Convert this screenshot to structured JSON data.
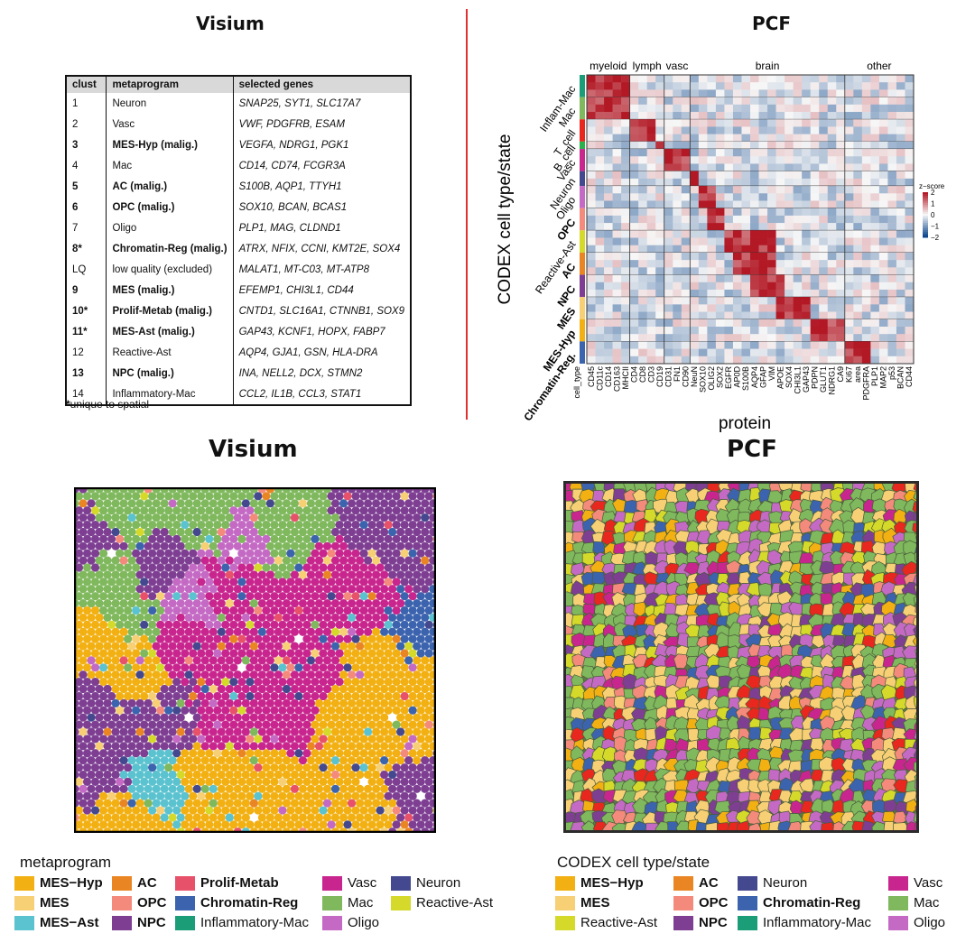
{
  "top_left": {
    "title": "Visium",
    "table": {
      "headers": [
        "clust",
        "metaprogram",
        "selected genes"
      ],
      "rows": [
        {
          "clust": "1",
          "metaprogram": "Neuron",
          "genes": "SNAP25, SYT1, SLC17A7",
          "bold": false
        },
        {
          "clust": "2",
          "metaprogram": "Vasc",
          "genes": "VWF, PDGFRB, ESAM",
          "bold": false
        },
        {
          "clust": "3",
          "metaprogram": "MES-Hyp (malig.)",
          "genes": "VEGFA, NDRG1, PGK1",
          "bold": true
        },
        {
          "clust": "4",
          "metaprogram": "Mac",
          "genes": "CD14, CD74, FCGR3A",
          "bold": false
        },
        {
          "clust": "5",
          "metaprogram": "AC (malig.)",
          "genes": "S100B, AQP1, TTYH1",
          "bold": true
        },
        {
          "clust": "6",
          "metaprogram": "OPC (malig.)",
          "genes": "SOX10, BCAN, BCAS1",
          "bold": true
        },
        {
          "clust": "7",
          "metaprogram": "Oligo",
          "genes": "PLP1, MAG, CLDND1",
          "bold": false
        },
        {
          "clust": "8*",
          "metaprogram": "Chromatin-Reg (malig.)",
          "genes": "ATRX, NFIX, CCNI, KMT2E, SOX4",
          "bold": true
        },
        {
          "clust": "LQ",
          "metaprogram": "low quality (excluded)",
          "genes": "MALAT1, MT-C03, MT-ATP8",
          "bold": false
        },
        {
          "clust": "9",
          "metaprogram": "MES (malig.)",
          "genes": "EFEMP1, CHI3L1, CD44",
          "bold": true
        },
        {
          "clust": "10*",
          "metaprogram": "Prolif-Metab (malig.)",
          "genes": "CNTD1, SLC16A1, CTNNB1, SOX9",
          "bold": true
        },
        {
          "clust": "11*",
          "metaprogram": "MES-Ast (malig.)",
          "genes": "GAP43, KCNF1, HOPX, FABP7",
          "bold": true
        },
        {
          "clust": "12",
          "metaprogram": "Reactive-Ast",
          "genes": "AQP4, GJA1, GSN, HLA-DRA",
          "bold": false
        },
        {
          "clust": "13",
          "metaprogram": "NPC (malig.)",
          "genes": "INA, NELL2, DCX, STMN2",
          "bold": true
        },
        {
          "clust": "14",
          "metaprogram": "Inflammatory-Mac",
          "genes": "CCL2, IL1B, CCL3, STAT1",
          "bold": false
        }
      ],
      "footnote_mark": "*",
      "footnote": "unique to spatial"
    }
  },
  "top_right": {
    "title": "PCF",
    "chart_data": {
      "type": "heatmap",
      "ylabel": "CODEX cell type/state",
      "xlabel": "protein",
      "column_groups": [
        "myeloid",
        "lymph",
        "vasc",
        "brain",
        "other"
      ],
      "proteins": [
        "CD45",
        "CD11c",
        "CD14",
        "CD163",
        "MHCII",
        "CD4",
        "CD8",
        "CD3",
        "CD19",
        "CD31",
        "FN1",
        "CD90",
        "NeuN",
        "SOX10",
        "OLIG2",
        "SOX2",
        "EGFR",
        "AP0D",
        "S100B",
        "AQP4",
        "GFAP",
        "VIM",
        "APOE",
        "SOX4",
        "CHI3L1",
        "GAP43",
        "PDPN",
        "GLUT1",
        "NDRG1",
        "CA9",
        "Ki67",
        "area",
        "PDGFRA",
        "PLP1",
        "MAP2",
        "p53",
        "BCAN",
        "CD44"
      ],
      "first_column_label": "cell_type",
      "row_labels": [
        "Inflam-Mac",
        "Mac",
        "T_cell",
        "B_cell",
        "Vasc",
        "Neuron",
        "Oligo",
        "OPC",
        "Reactive-Ast",
        "AC",
        "NPC",
        "MES",
        "MES-Hyp",
        "Chromatin-Reg."
      ],
      "bold_rows": [
        "OPC",
        "AC",
        "NPC",
        "MES",
        "MES-Hyp",
        "Chromatin-Reg."
      ],
      "colorbar": {
        "title": "z−score",
        "ticks": [
          "2",
          "1",
          "0",
          "−1",
          "−2"
        ],
        "min": -2,
        "max": 2
      }
    }
  },
  "bottom_left": {
    "title": "Visium"
  },
  "bottom_right": {
    "title": "PCF"
  },
  "legend_left": {
    "title": "metaprogram",
    "items": [
      {
        "label": "MES−Hyp",
        "color": "#f2b013",
        "bold": true
      },
      {
        "label": "MES",
        "color": "#f7cf75",
        "bold": true
      },
      {
        "label": "MES−Ast",
        "color": "#5bc2cf",
        "bold": true
      },
      {
        "label": "AC",
        "color": "#ea8524",
        "bold": true
      },
      {
        "label": "OPC",
        "color": "#f48a7c",
        "bold": true
      },
      {
        "label": "NPC",
        "color": "#7e3f93",
        "bold": true
      },
      {
        "label": "Prolif-Metab",
        "color": "#e8516a",
        "bold": true
      },
      {
        "label": "Chromatin-Reg",
        "color": "#3c63ae",
        "bold": true
      },
      {
        "label": "Inflammatory-Mac",
        "color": "#1b9e77",
        "bold": false
      },
      {
        "label": "Vasc",
        "color": "#c8268e",
        "bold": false
      },
      {
        "label": "Mac",
        "color": "#7fb85d",
        "bold": false
      },
      {
        "label": "Oligo",
        "color": "#c46ac4",
        "bold": false
      },
      {
        "label": "Neuron",
        "color": "#44498f",
        "bold": false
      },
      {
        "label": "Reactive-Ast",
        "color": "#d5d92a",
        "bold": false
      }
    ]
  },
  "legend_right": {
    "title": "CODEX cell type/state",
    "items": [
      {
        "label": "MES−Hyp",
        "color": "#f2b013",
        "bold": true
      },
      {
        "label": "MES",
        "color": "#f7cf75",
        "bold": true
      },
      {
        "label": "Reactive-Ast",
        "color": "#d5d92a",
        "bold": false
      },
      {
        "label": "AC",
        "color": "#ea8524",
        "bold": true
      },
      {
        "label": "OPC",
        "color": "#f48a7c",
        "bold": true
      },
      {
        "label": "NPC",
        "color": "#7e3f93",
        "bold": true
      },
      {
        "label": "Neuron",
        "color": "#44498f",
        "bold": false
      },
      {
        "label": "Chromatin-Reg",
        "color": "#3c63ae",
        "bold": true
      },
      {
        "label": "Inflammatory-Mac",
        "color": "#1b9e77",
        "bold": false
      },
      {
        "label": "Vasc",
        "color": "#c8268e",
        "bold": false
      },
      {
        "label": "Mac",
        "color": "#7fb85d",
        "bold": false
      },
      {
        "label": "Oligo",
        "color": "#c46ac4",
        "bold": false
      }
    ]
  }
}
